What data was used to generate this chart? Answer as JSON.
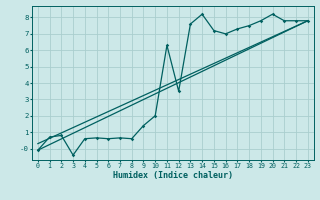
{
  "xlabel": "Humidex (Indice chaleur)",
  "bg_color": "#cce8e8",
  "grid_color": "#aacece",
  "line_color": "#006060",
  "xmin": -0.5,
  "xmax": 23.5,
  "ymin": -0.7,
  "ymax": 8.7,
  "yticks": [
    0,
    1,
    2,
    3,
    4,
    5,
    6,
    7,
    8
  ],
  "ytick_labels": [
    "-0",
    "1",
    "2",
    "3",
    "4",
    "5",
    "6",
    "7",
    "8"
  ],
  "xticks": [
    0,
    1,
    2,
    3,
    4,
    5,
    6,
    7,
    8,
    9,
    10,
    11,
    12,
    13,
    14,
    15,
    16,
    17,
    18,
    19,
    20,
    21,
    22,
    23
  ],
  "data_x": [
    0,
    1,
    2,
    3,
    4,
    5,
    6,
    7,
    8,
    9,
    10,
    11,
    12,
    13,
    14,
    15,
    16,
    17,
    18,
    19,
    20,
    21,
    22,
    23
  ],
  "data_y": [
    -0.1,
    0.7,
    0.8,
    -0.4,
    0.6,
    0.65,
    0.6,
    0.65,
    0.6,
    1.4,
    2.0,
    6.3,
    3.5,
    7.6,
    8.2,
    7.2,
    7.0,
    7.3,
    7.5,
    7.8,
    8.2,
    7.8,
    7.8,
    7.8
  ],
  "line1_x": [
    0,
    23
  ],
  "line1_y": [
    -0.1,
    7.8
  ],
  "line2_x": [
    0,
    23
  ],
  "line2_y": [
    0.3,
    7.8
  ],
  "xlabel_fontsize": 6.0,
  "tick_fontsize": 4.8
}
